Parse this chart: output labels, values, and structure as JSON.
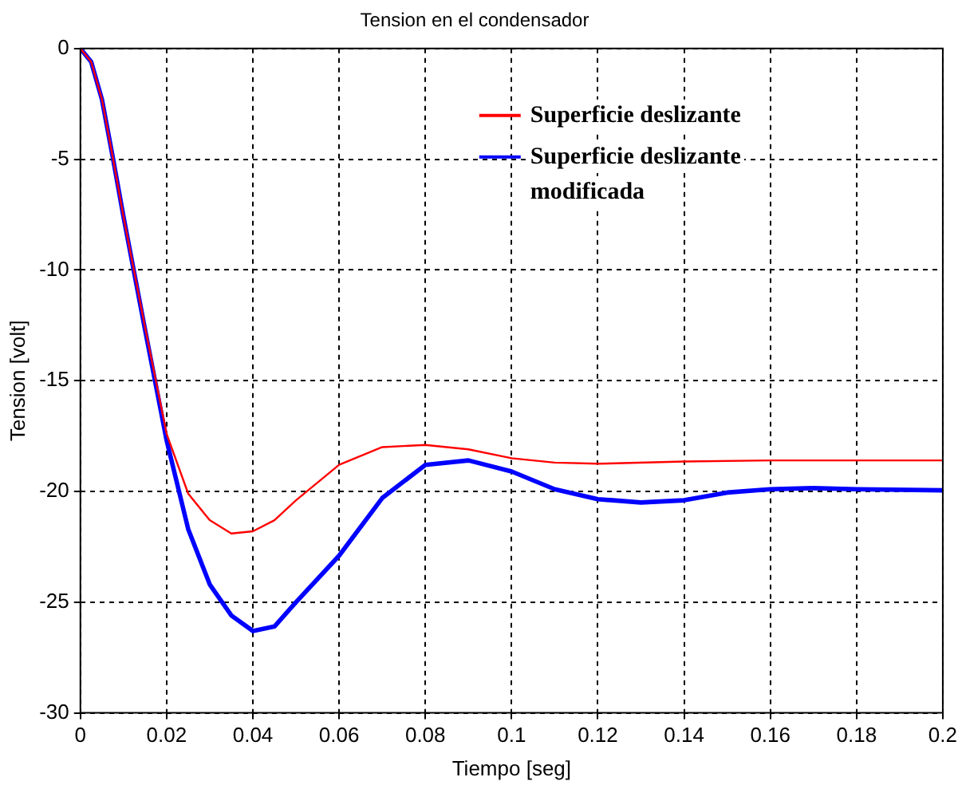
{
  "chart_data": {
    "type": "line",
    "title": "Tension en el condensador",
    "xlabel": "Tiempo [seg]",
    "ylabel": "Tension [volt]",
    "xlim": [
      0,
      0.2
    ],
    "xticks": [
      0,
      0.02,
      0.04,
      0.06,
      0.08,
      0.1,
      0.12,
      0.14,
      0.16,
      0.18,
      0.2
    ],
    "ylim": [
      -30,
      0
    ],
    "yticks": [
      -30,
      -25,
      -20,
      -15,
      -10,
      -5,
      0
    ],
    "grid": true,
    "legend": "top right",
    "marker": "none",
    "line_style": "solid",
    "series": [
      {
        "name": "Superficie deslizante",
        "color": "#ff0000",
        "x": [
          0,
          0.0025,
          0.005,
          0.0075,
          0.01,
          0.015,
          0.02,
          0.025,
          0.03,
          0.035,
          0.04,
          0.045,
          0.05,
          0.06,
          0.07,
          0.08,
          0.09,
          0.1,
          0.11,
          0.12,
          0.14,
          0.16,
          0.18,
          0.2
        ],
        "values": [
          0,
          -0.6,
          -2.3,
          -4.9,
          -7.6,
          -12.6,
          -17.4,
          -20.1,
          -21.3,
          -21.9,
          -21.8,
          -21.3,
          -20.4,
          -18.8,
          -18.0,
          -17.9,
          -18.1,
          -18.5,
          -18.7,
          -18.75,
          -18.65,
          -18.6,
          -18.6,
          -18.6
        ]
      },
      {
        "name": "Superficie deslizante\nmodificada",
        "color": "#0000ff",
        "x": [
          0,
          0.0025,
          0.005,
          0.0075,
          0.01,
          0.015,
          0.02,
          0.025,
          0.03,
          0.035,
          0.04,
          0.045,
          0.05,
          0.06,
          0.07,
          0.08,
          0.09,
          0.1,
          0.11,
          0.12,
          0.13,
          0.14,
          0.15,
          0.16,
          0.17,
          0.18,
          0.2
        ],
        "values": [
          0,
          -0.6,
          -2.3,
          -4.9,
          -7.6,
          -12.7,
          -17.7,
          -21.7,
          -24.2,
          -25.6,
          -26.3,
          -26.1,
          -25.0,
          -22.9,
          -20.3,
          -18.8,
          -18.6,
          -19.1,
          -19.9,
          -20.35,
          -20.5,
          -20.4,
          -20.05,
          -19.9,
          -19.85,
          -19.9,
          -19.95
        ]
      }
    ]
  }
}
